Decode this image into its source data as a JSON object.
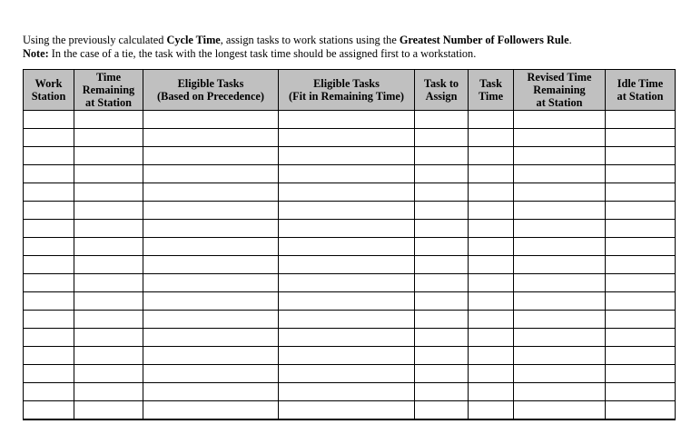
{
  "instructions": {
    "line1_pre": "Using the previously calculated ",
    "line1_bold1": "Cycle Time",
    "line1_mid": ", assign tasks to work stations using the ",
    "line1_bold2": "Greatest Number of Followers Rule",
    "line1_end": ".",
    "line2_bold": "Note:",
    "line2_text": " In the case of a tie, the task with the longest task time should be assigned first to a workstation."
  },
  "table": {
    "headers": [
      [
        "Work",
        "Station"
      ],
      [
        "Time",
        "Remaining",
        "at Station"
      ],
      [
        "Eligible Tasks",
        "(Based on Precedence)"
      ],
      [
        "Eligible Tasks",
        "(Fit in Remaining Time)"
      ],
      [
        "Task to",
        "Assign"
      ],
      [
        "Task",
        "Time"
      ],
      [
        "Revised Time",
        "Remaining",
        "at Station"
      ],
      [
        "Idle Time",
        "at Station"
      ]
    ],
    "row_count": 17
  }
}
